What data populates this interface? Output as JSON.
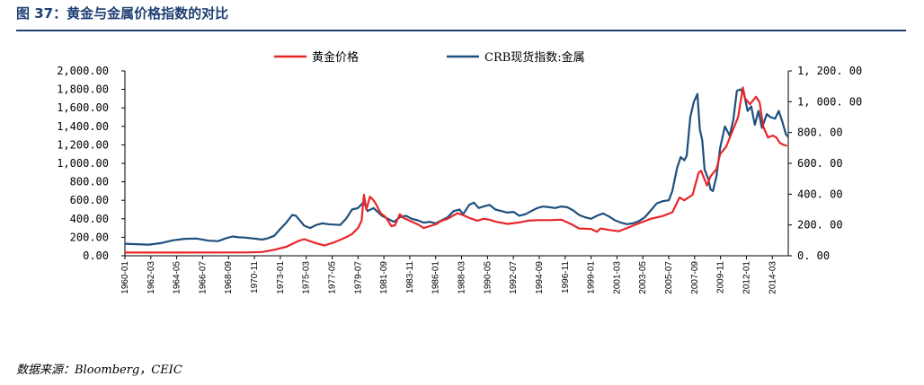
{
  "figure": {
    "title": "图 37：黄金与金属价格指数的对比",
    "source": "数据来源：Bloomberg，CEIC"
  },
  "colors": {
    "gold": "#e8262a",
    "crb": "#1d4f7d",
    "title": "#1f3f73"
  },
  "chart_data": {
    "type": "line",
    "legend": [
      "黄金价格",
      "CRB现货指数:金属"
    ],
    "legend_position": "top-center",
    "grid": false,
    "y_left": {
      "ylim": [
        0,
        2000
      ],
      "ticks": [
        "0.00",
        "200.00",
        "400.00",
        "600.00",
        "800.00",
        "1,000.00",
        "1,200.00",
        "1,400.00",
        "1,600.00",
        "1,800.00",
        "2,000.00"
      ]
    },
    "y_right": {
      "ylim": [
        0,
        1200
      ],
      "ticks": [
        "0. 00",
        "200. 00",
        "400. 00",
        "600. 00",
        "800. 00",
        "1, 000. 00",
        "1, 200. 00"
      ]
    },
    "x_range": [
      1960.0,
      2015.5
    ],
    "x_tick_labels": [
      "1960-01",
      "1962-03",
      "1964-05",
      "1966-07",
      "1968-09",
      "1970-11",
      "1973-01",
      "1975-03",
      "1977-05",
      "1979-07",
      "1981-09",
      "1983-11",
      "1986-01",
      "1988-03",
      "1990-05",
      "1992-07",
      "1994-09",
      "1996-11",
      "1999-01",
      "2001-03",
      "2003-05",
      "2005-07",
      "2007-09",
      "2009-11",
      "2012-01",
      "2014-03"
    ],
    "series": [
      {
        "name": "黄金价格",
        "axis": "left",
        "points": [
          [
            1960.0,
            35
          ],
          [
            1965.0,
            35
          ],
          [
            1970.0,
            36
          ],
          [
            1971.5,
            41
          ],
          [
            1972.5,
            65
          ],
          [
            1973.5,
            97
          ],
          [
            1974.5,
            159
          ],
          [
            1975.0,
            180
          ],
          [
            1976.0,
            135
          ],
          [
            1976.7,
            112
          ],
          [
            1977.5,
            145
          ],
          [
            1978.5,
            200
          ],
          [
            1979.0,
            235
          ],
          [
            1979.5,
            300
          ],
          [
            1979.8,
            380
          ],
          [
            1980.0,
            660
          ],
          [
            1980.2,
            500
          ],
          [
            1980.5,
            640
          ],
          [
            1980.8,
            600
          ],
          [
            1981.0,
            560
          ],
          [
            1981.4,
            460
          ],
          [
            1981.8,
            420
          ],
          [
            1982.3,
            320
          ],
          [
            1982.6,
            330
          ],
          [
            1983.0,
            450
          ],
          [
            1983.3,
            410
          ],
          [
            1983.8,
            380
          ],
          [
            1984.5,
            340
          ],
          [
            1985.0,
            300
          ],
          [
            1985.5,
            320
          ],
          [
            1986.0,
            340
          ],
          [
            1986.5,
            380
          ],
          [
            1987.0,
            400
          ],
          [
            1987.8,
            460
          ],
          [
            1988.3,
            440
          ],
          [
            1988.8,
            410
          ],
          [
            1989.5,
            380
          ],
          [
            1990.0,
            400
          ],
          [
            1990.5,
            390
          ],
          [
            1991.0,
            370
          ],
          [
            1992.0,
            345
          ],
          [
            1993.0,
            360
          ],
          [
            1993.7,
            380
          ],
          [
            1994.5,
            385
          ],
          [
            1995.5,
            385
          ],
          [
            1996.5,
            390
          ],
          [
            1997.3,
            345
          ],
          [
            1998.0,
            295
          ],
          [
            1999.0,
            290
          ],
          [
            1999.5,
            260
          ],
          [
            1999.8,
            295
          ],
          [
            2000.5,
            280
          ],
          [
            2001.3,
            265
          ],
          [
            2002.0,
            300
          ],
          [
            2003.0,
            350
          ],
          [
            2004.0,
            400
          ],
          [
            2005.0,
            430
          ],
          [
            2005.8,
            470
          ],
          [
            2006.4,
            630
          ],
          [
            2006.8,
            600
          ],
          [
            2007.5,
            660
          ],
          [
            2008.0,
            900
          ],
          [
            2008.2,
            920
          ],
          [
            2008.7,
            760
          ],
          [
            2009.0,
            860
          ],
          [
            2009.5,
            940
          ],
          [
            2009.8,
            1100
          ],
          [
            2010.3,
            1180
          ],
          [
            2010.8,
            1340
          ],
          [
            2011.3,
            1500
          ],
          [
            2011.7,
            1820
          ],
          [
            2011.9,
            1700
          ],
          [
            2012.3,
            1640
          ],
          [
            2012.8,
            1720
          ],
          [
            2013.1,
            1660
          ],
          [
            2013.4,
            1400
          ],
          [
            2013.8,
            1280
          ],
          [
            2014.2,
            1300
          ],
          [
            2014.5,
            1280
          ],
          [
            2014.8,
            1220
          ],
          [
            2015.1,
            1200
          ],
          [
            2015.4,
            1190
          ]
        ]
      },
      {
        "name": "CRB现货指数:金属",
        "axis": "right",
        "points": [
          [
            1960.0,
            78
          ],
          [
            1961.0,
            75
          ],
          [
            1962.0,
            72
          ],
          [
            1963.0,
            82
          ],
          [
            1964.0,
            100
          ],
          [
            1965.0,
            110
          ],
          [
            1966.0,
            112
          ],
          [
            1967.0,
            98
          ],
          [
            1967.8,
            95
          ],
          [
            1968.5,
            115
          ],
          [
            1969.0,
            125
          ],
          [
            1969.5,
            120
          ],
          [
            1970.0,
            118
          ],
          [
            1971.0,
            110
          ],
          [
            1971.5,
            105
          ],
          [
            1972.0,
            115
          ],
          [
            1972.5,
            130
          ],
          [
            1973.0,
            175
          ],
          [
            1973.5,
            215
          ],
          [
            1974.0,
            265
          ],
          [
            1974.3,
            260
          ],
          [
            1975.0,
            195
          ],
          [
            1975.5,
            180
          ],
          [
            1976.0,
            200
          ],
          [
            1976.5,
            210
          ],
          [
            1977.0,
            205
          ],
          [
            1978.0,
            200
          ],
          [
            1978.5,
            240
          ],
          [
            1979.0,
            300
          ],
          [
            1979.5,
            310
          ],
          [
            1980.0,
            350
          ],
          [
            1980.3,
            290
          ],
          [
            1980.8,
            310
          ],
          [
            1981.5,
            260
          ],
          [
            1982.5,
            220
          ],
          [
            1983.0,
            250
          ],
          [
            1983.5,
            260
          ],
          [
            1984.0,
            240
          ],
          [
            1984.5,
            230
          ],
          [
            1985.0,
            215
          ],
          [
            1985.5,
            220
          ],
          [
            1986.0,
            210
          ],
          [
            1986.5,
            230
          ],
          [
            1987.0,
            250
          ],
          [
            1987.5,
            290
          ],
          [
            1988.0,
            300
          ],
          [
            1988.3,
            270
          ],
          [
            1988.8,
            330
          ],
          [
            1989.2,
            345
          ],
          [
            1989.6,
            310
          ],
          [
            1990.0,
            320
          ],
          [
            1990.5,
            330
          ],
          [
            1991.0,
            300
          ],
          [
            1991.5,
            290
          ],
          [
            1992.0,
            280
          ],
          [
            1992.5,
            285
          ],
          [
            1993.0,
            260
          ],
          [
            1993.5,
            270
          ],
          [
            1994.0,
            290
          ],
          [
            1994.5,
            310
          ],
          [
            1995.0,
            320
          ],
          [
            1995.5,
            315
          ],
          [
            1996.0,
            310
          ],
          [
            1996.5,
            320
          ],
          [
            1997.0,
            315
          ],
          [
            1997.5,
            295
          ],
          [
            1998.0,
            265
          ],
          [
            1998.5,
            250
          ],
          [
            1999.0,
            240
          ],
          [
            1999.5,
            260
          ],
          [
            2000.0,
            275
          ],
          [
            2000.5,
            255
          ],
          [
            2001.0,
            230
          ],
          [
            2001.5,
            215
          ],
          [
            2002.0,
            205
          ],
          [
            2002.5,
            210
          ],
          [
            2003.0,
            225
          ],
          [
            2003.5,
            250
          ],
          [
            2004.0,
            295
          ],
          [
            2004.5,
            340
          ],
          [
            2005.0,
            355
          ],
          [
            2005.5,
            360
          ],
          [
            2005.8,
            420
          ],
          [
            2006.2,
            570
          ],
          [
            2006.5,
            640
          ],
          [
            2006.8,
            620
          ],
          [
            2007.0,
            650
          ],
          [
            2007.3,
            900
          ],
          [
            2007.6,
            1000
          ],
          [
            2007.9,
            1050
          ],
          [
            2008.1,
            820
          ],
          [
            2008.3,
            750
          ],
          [
            2008.5,
            560
          ],
          [
            2008.8,
            500
          ],
          [
            2009.0,
            430
          ],
          [
            2009.2,
            420
          ],
          [
            2009.5,
            520
          ],
          [
            2009.8,
            700
          ],
          [
            2010.2,
            840
          ],
          [
            2010.6,
            780
          ],
          [
            2010.9,
            880
          ],
          [
            2011.2,
            1070
          ],
          [
            2011.5,
            1080
          ],
          [
            2011.8,
            1050
          ],
          [
            2012.1,
            940
          ],
          [
            2012.4,
            970
          ],
          [
            2012.7,
            850
          ],
          [
            2013.0,
            940
          ],
          [
            2013.3,
            830
          ],
          [
            2013.7,
            920
          ],
          [
            2014.0,
            900
          ],
          [
            2014.4,
            890
          ],
          [
            2014.7,
            940
          ],
          [
            2015.0,
            870
          ],
          [
            2015.3,
            790
          ],
          [
            2015.5,
            770
          ]
        ]
      }
    ]
  }
}
